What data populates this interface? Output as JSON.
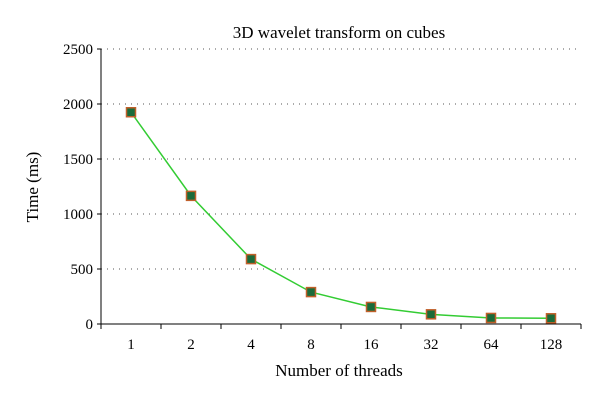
{
  "chart_data": {
    "type": "line",
    "title": "3D wavelet transform on cubes",
    "xlabel": "Number of threads",
    "ylabel": "Time (ms)",
    "categories": [
      "1",
      "2",
      "4",
      "8",
      "16",
      "32",
      "64",
      "128"
    ],
    "series": [
      {
        "values": [
          1925,
          1165,
          590,
          290,
          155,
          88,
          55,
          52
        ]
      }
    ],
    "ylim": [
      0,
      2500
    ],
    "yticks": [
      0,
      500,
      1000,
      1500,
      2000,
      2500
    ],
    "grid": true,
    "line_color": "#33cc33",
    "marker_fill": "#1a6b3a",
    "marker_edge": "#c0602a"
  }
}
